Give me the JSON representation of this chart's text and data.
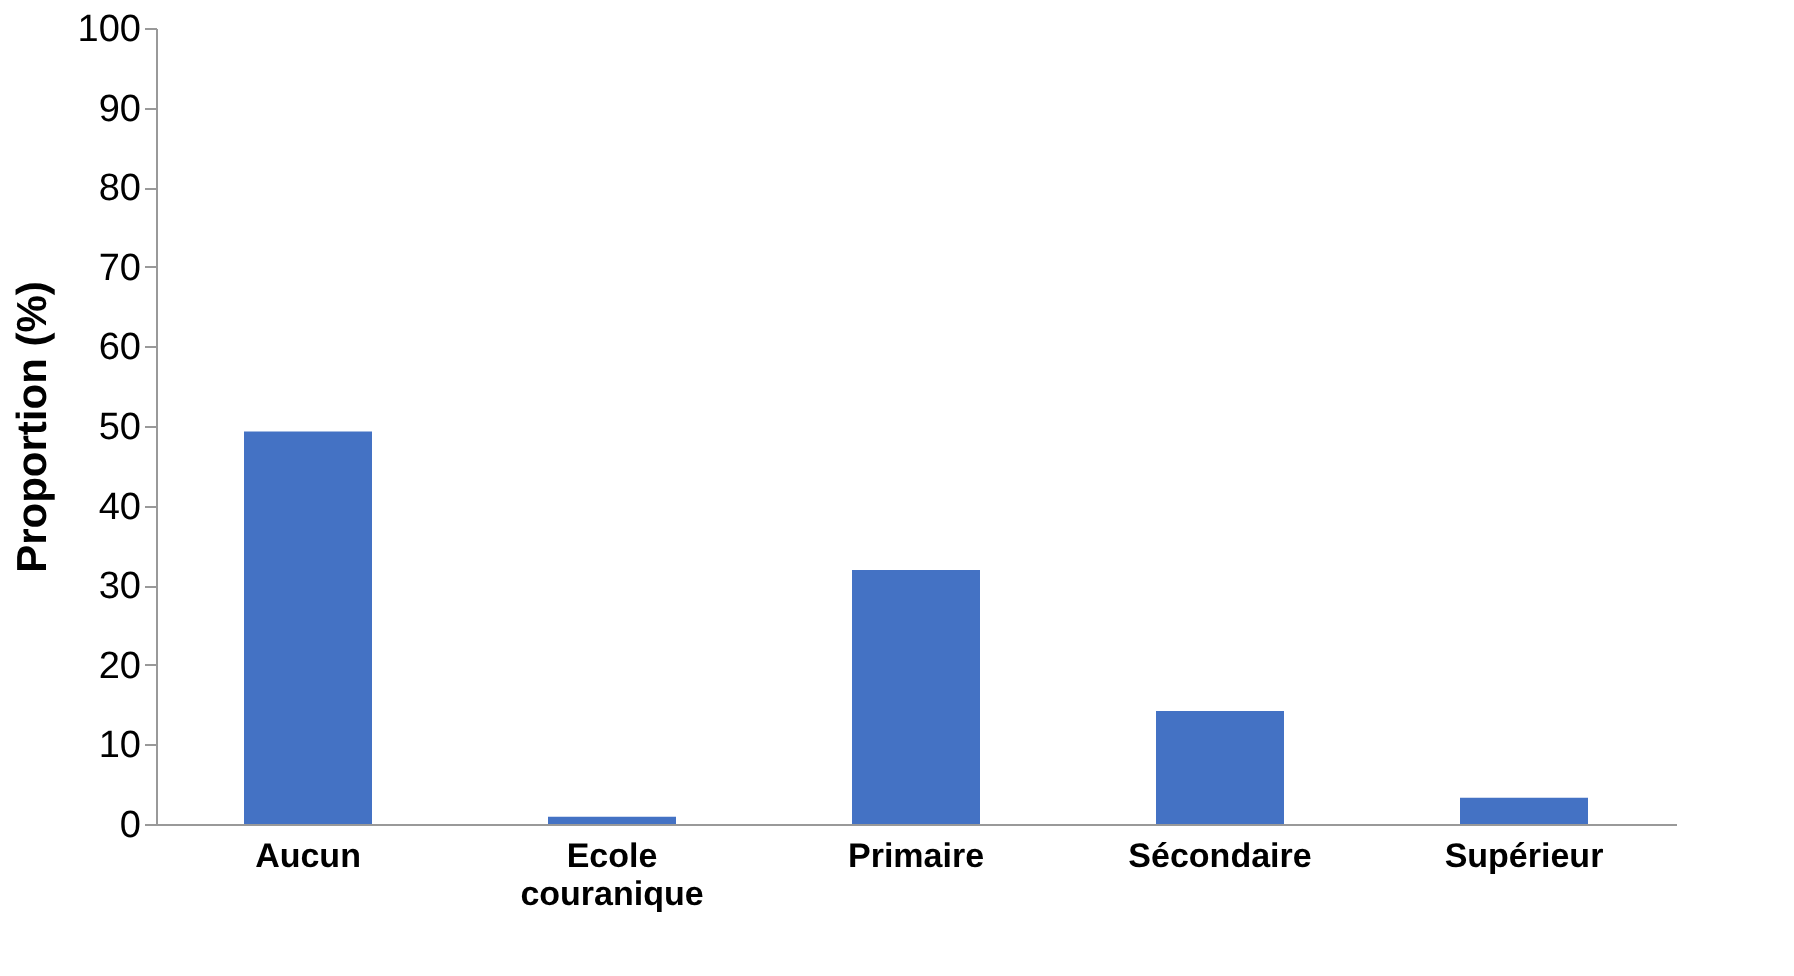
{
  "chart_data": {
    "type": "bar",
    "ylabel": "Proportion (%)",
    "categories": [
      "Aucun",
      "Ecole couranique",
      "Primaire",
      "Sécondaire",
      "Supérieur"
    ],
    "values": [
      49.3,
      0.9,
      31.9,
      14.2,
      3.3
    ],
    "color": "#4472c4",
    "ylim": [
      0,
      100
    ],
    "yticks": [
      0,
      10,
      20,
      30,
      40,
      50,
      60,
      70,
      80,
      90,
      100
    ],
    "grid": false
  }
}
